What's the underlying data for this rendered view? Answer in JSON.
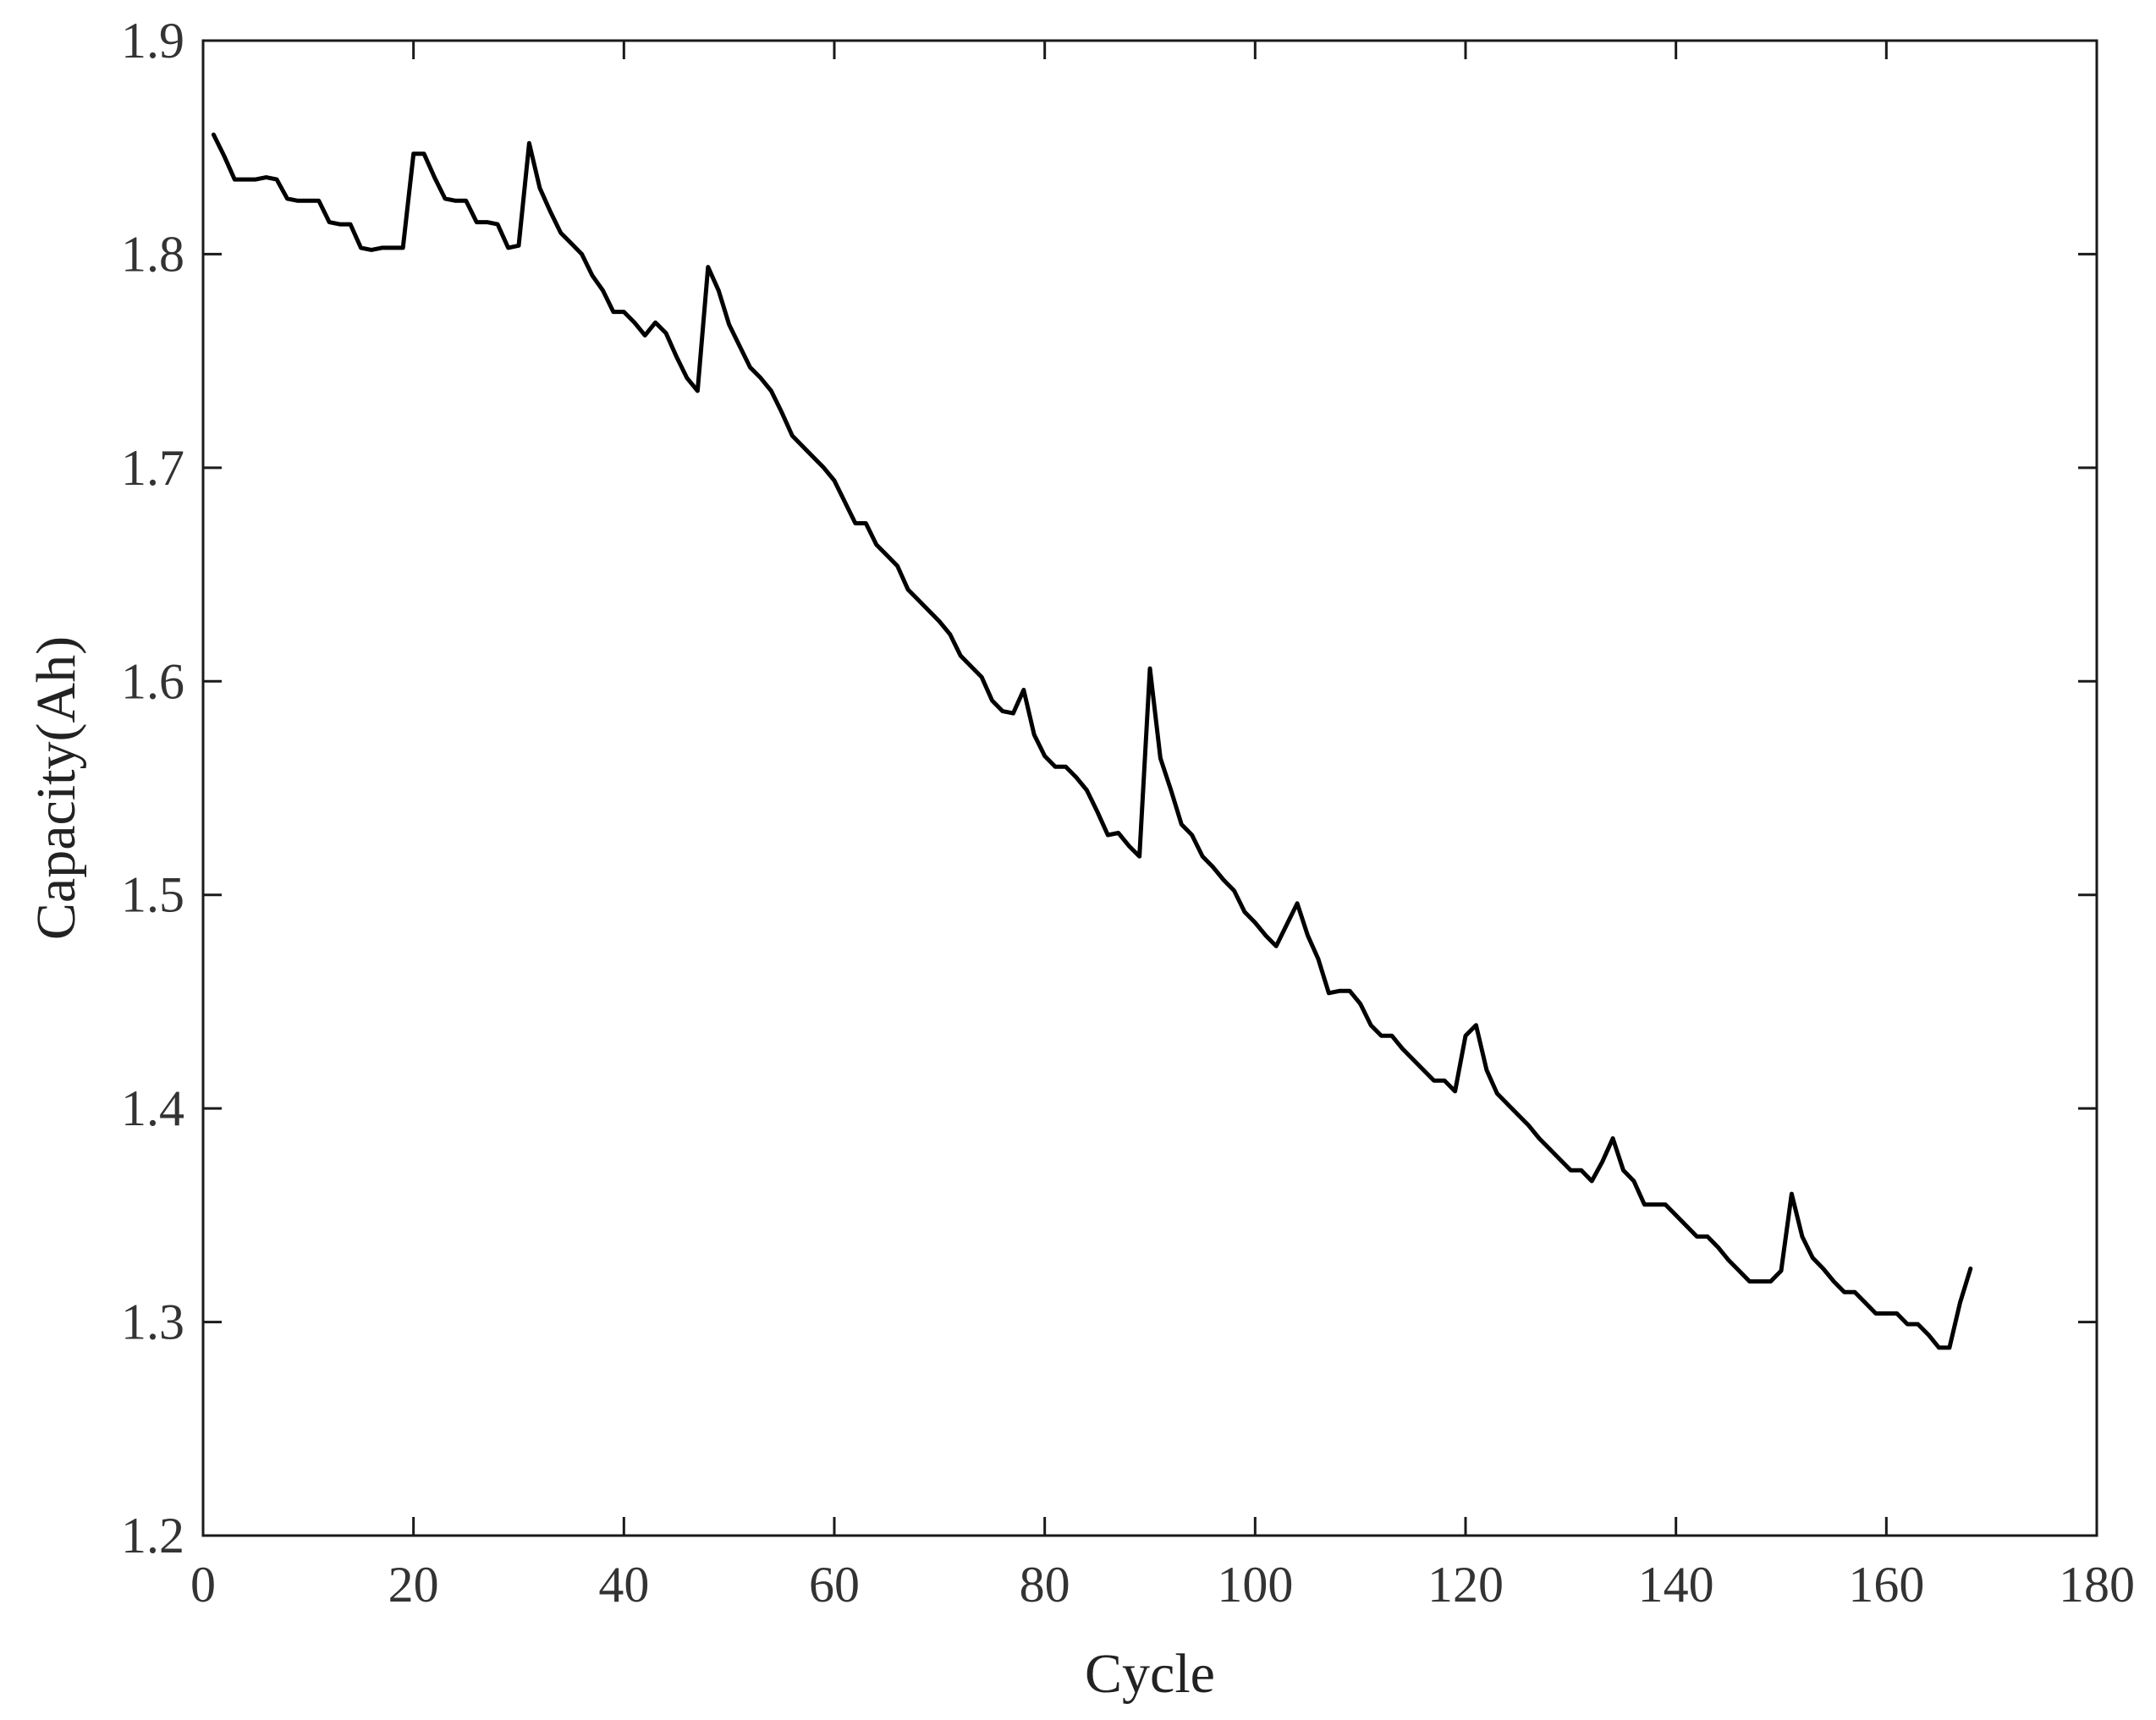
{
  "chart_data": {
    "type": "line",
    "title": "",
    "xlabel": "Cycle",
    "ylabel": "Capacity(Ah)",
    "xlim": [
      0,
      180
    ],
    "ylim": [
      1.2,
      1.9
    ],
    "xticks": [
      0,
      20,
      40,
      60,
      80,
      100,
      120,
      140,
      160,
      180
    ],
    "yticks": [
      1.2,
      1.3,
      1.4,
      1.5,
      1.6,
      1.7,
      1.8,
      1.9
    ],
    "xtick_labels": [
      "0",
      "20",
      "40",
      "60",
      "80",
      "100",
      "120",
      "140",
      "160",
      "180"
    ],
    "ytick_labels": [
      "1.2",
      "1.3",
      "1.4",
      "1.5",
      "1.6",
      "1.7",
      "1.8",
      "1.9"
    ],
    "grid": false,
    "line_color": "#000000",
    "series": [
      {
        "x": [
          1,
          2,
          3,
          4,
          5,
          6,
          7,
          8,
          9,
          10,
          11,
          12,
          13,
          14,
          15,
          16,
          17,
          18,
          19,
          20,
          21,
          22,
          23,
          24,
          25,
          26,
          27,
          28,
          29,
          30,
          31,
          32,
          33,
          34,
          35,
          36,
          37,
          38,
          39,
          40,
          41,
          42,
          43,
          44,
          45,
          46,
          47,
          48,
          49,
          50,
          51,
          52,
          53,
          54,
          55,
          56,
          57,
          58,
          59,
          60,
          61,
          62,
          63,
          64,
          65,
          66,
          67,
          68,
          69,
          70,
          71,
          72,
          73,
          74,
          75,
          76,
          77,
          78,
          79,
          80,
          81,
          82,
          83,
          84,
          85,
          86,
          87,
          88,
          89,
          90,
          91,
          92,
          93,
          94,
          95,
          96,
          97,
          98,
          99,
          100,
          101,
          102,
          103,
          104,
          105,
          106,
          107,
          108,
          109,
          110,
          111,
          112,
          113,
          114,
          115,
          116,
          117,
          118,
          119,
          120,
          121,
          122,
          123,
          124,
          125,
          126,
          127,
          128,
          129,
          130,
          131,
          132,
          133,
          134,
          135,
          136,
          137,
          138,
          139,
          140,
          141,
          142,
          143,
          144,
          145,
          146,
          147,
          148,
          149,
          150,
          151,
          152,
          153,
          154,
          155,
          156,
          157,
          158,
          159,
          160,
          161,
          162,
          163,
          164,
          165,
          166,
          167,
          168
        ],
        "y": [
          1.856,
          1.846,
          1.835,
          1.835,
          1.835,
          1.836,
          1.835,
          1.826,
          1.825,
          1.825,
          1.825,
          1.815,
          1.814,
          1.814,
          1.803,
          1.802,
          1.803,
          1.803,
          1.803,
          1.847,
          1.847,
          1.836,
          1.826,
          1.825,
          1.825,
          1.815,
          1.815,
          1.814,
          1.803,
          1.804,
          1.852,
          1.831,
          1.82,
          1.81,
          1.805,
          1.8,
          1.79,
          1.783,
          1.773,
          1.773,
          1.768,
          1.762,
          1.768,
          1.763,
          1.752,
          1.742,
          1.736,
          1.794,
          1.783,
          1.767,
          1.757,
          1.747,
          1.742,
          1.736,
          1.726,
          1.715,
          1.71,
          1.705,
          1.7,
          1.694,
          1.684,
          1.674,
          1.674,
          1.664,
          1.659,
          1.654,
          1.643,
          1.638,
          1.633,
          1.628,
          1.622,
          1.612,
          1.607,
          1.602,
          1.591,
          1.586,
          1.585,
          1.596,
          1.575,
          1.565,
          1.56,
          1.56,
          1.555,
          1.549,
          1.539,
          1.528,
          1.529,
          1.523,
          1.518,
          1.606,
          1.564,
          1.549,
          1.533,
          1.528,
          1.518,
          1.513,
          1.507,
          1.502,
          1.492,
          1.487,
          1.481,
          1.476,
          1.486,
          1.496,
          1.481,
          1.47,
          1.454,
          1.455,
          1.455,
          1.449,
          1.439,
          1.434,
          1.434,
          1.428,
          1.423,
          1.418,
          1.413,
          1.413,
          1.408,
          1.434,
          1.439,
          1.418,
          1.407,
          1.402,
          1.397,
          1.392,
          1.386,
          1.381,
          1.376,
          1.371,
          1.371,
          1.366,
          1.375,
          1.386,
          1.371,
          1.366,
          1.355,
          1.355,
          1.355,
          1.35,
          1.345,
          1.34,
          1.34,
          1.335,
          1.329,
          1.324,
          1.319,
          1.319,
          1.319,
          1.324,
          1.36,
          1.34,
          1.33,
          1.325,
          1.319,
          1.314,
          1.314,
          1.309,
          1.304,
          1.304,
          1.304,
          1.299,
          1.299,
          1.294,
          1.288,
          1.288,
          1.309,
          1.325
        ]
      }
    ]
  }
}
